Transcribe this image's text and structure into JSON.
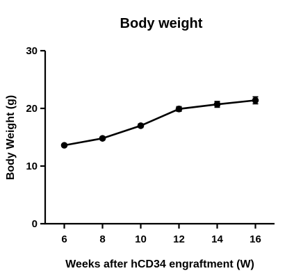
{
  "chart_data": {
    "type": "line",
    "title": "Body weight",
    "xlabel": "Weeks after hCD34 engraftment (W)",
    "ylabel": "Body Weight (g)",
    "xlim": [
      5,
      17
    ],
    "ylim": [
      0,
      30
    ],
    "xticks": [
      6,
      8,
      10,
      12,
      14,
      16
    ],
    "yticks": [
      0,
      10,
      20,
      30
    ],
    "grid": false,
    "legend": "none",
    "series": [
      {
        "x": [
          6,
          8,
          10,
          12,
          14,
          16
        ],
        "y": [
          13.6,
          14.8,
          17.0,
          19.9,
          20.7,
          21.4
        ],
        "error": [
          0.2,
          0.25,
          0.3,
          0.4,
          0.5,
          0.6
        ],
        "color": "#000000",
        "marker": "circle"
      }
    ]
  }
}
